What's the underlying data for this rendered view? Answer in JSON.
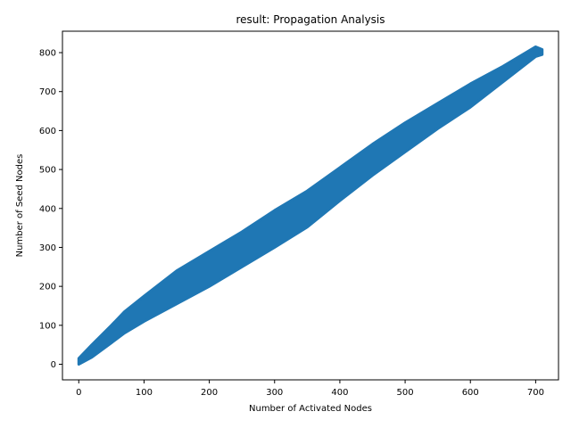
{
  "chart_data": {
    "type": "line",
    "title": "result: Propagation Analysis",
    "xlabel": "Number of Activated Nodes",
    "ylabel": "Number of Seed Nodes",
    "xlim": [
      -25,
      735
    ],
    "ylim": [
      -40,
      855
    ],
    "xticks": [
      0,
      100,
      200,
      300,
      400,
      500,
      600,
      700
    ],
    "yticks": [
      0,
      100,
      200,
      300,
      400,
      500,
      600,
      700,
      800
    ],
    "grid": false,
    "color": "#1f77b4",
    "series": [
      {
        "name": "",
        "x": [
          0,
          20,
          50,
          70,
          100,
          150,
          200,
          250,
          300,
          350,
          400,
          450,
          500,
          550,
          600,
          650,
          700,
          710
        ],
        "upper": [
          15,
          50,
          100,
          135,
          175,
          240,
          290,
          340,
          395,
          445,
          505,
          565,
          620,
          670,
          720,
          765,
          815,
          808
        ],
        "lower": [
          0,
          18,
          55,
          80,
          110,
          155,
          200,
          250,
          300,
          352,
          420,
          485,
          545,
          605,
          660,
          725,
          790,
          795
        ]
      }
    ]
  }
}
